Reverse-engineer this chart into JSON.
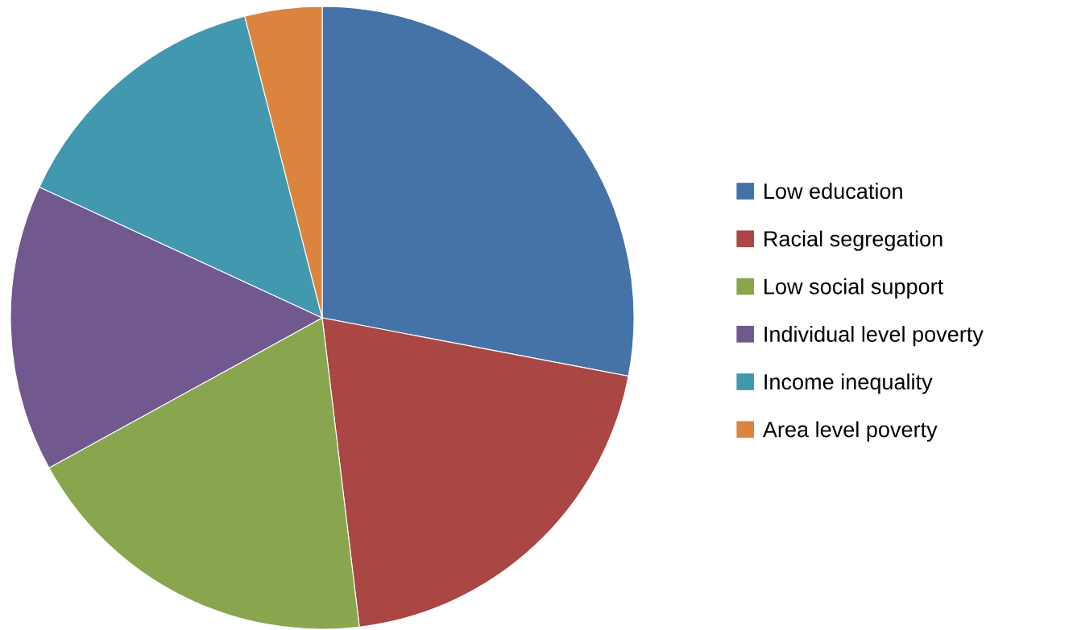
{
  "chart_data": {
    "type": "pie",
    "categories": [
      "Low education",
      "Racial segregation",
      "Low social support",
      "Individual level poverty",
      "Income inequality",
      "Area level poverty"
    ],
    "values": [
      28.0,
      20.1,
      18.9,
      14.9,
      14.1,
      4.0
    ],
    "colors": [
      "#4572a7",
      "#aa4643",
      "#89a54e",
      "#71588f",
      "#4198af",
      "#db843d"
    ],
    "legend": "right"
  }
}
